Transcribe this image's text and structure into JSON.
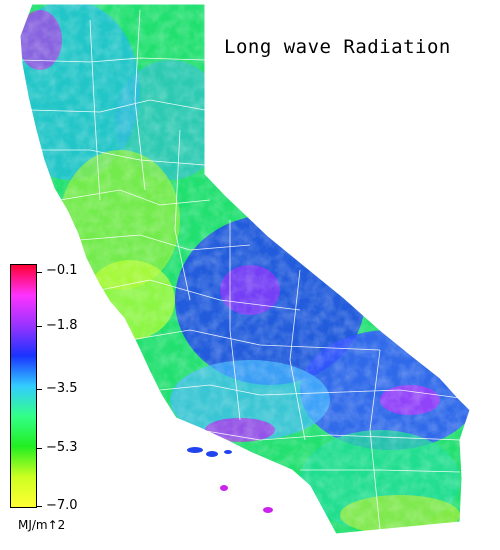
{
  "map": {
    "title": "Long wave Radiation",
    "legend": {
      "ticks": [
        "−0.1",
        "−1.8",
        "−3.5",
        "−5.3",
        "−7.0"
      ],
      "unit": "MJ/m↑2",
      "colors": [
        "#ff0033",
        "#ff33ff",
        "#9933ff",
        "#1a33ff",
        "#33ccff",
        "#33ff88",
        "#22ee22",
        "#ccff22",
        "#ffff33"
      ]
    },
    "landmass_colors": {
      "north": "#22e070",
      "central_valley": "#88ee44",
      "sierra": "#2255ee",
      "south": "#3366ff",
      "coast": "#55dd77",
      "highlight": "#cc22ee"
    }
  }
}
